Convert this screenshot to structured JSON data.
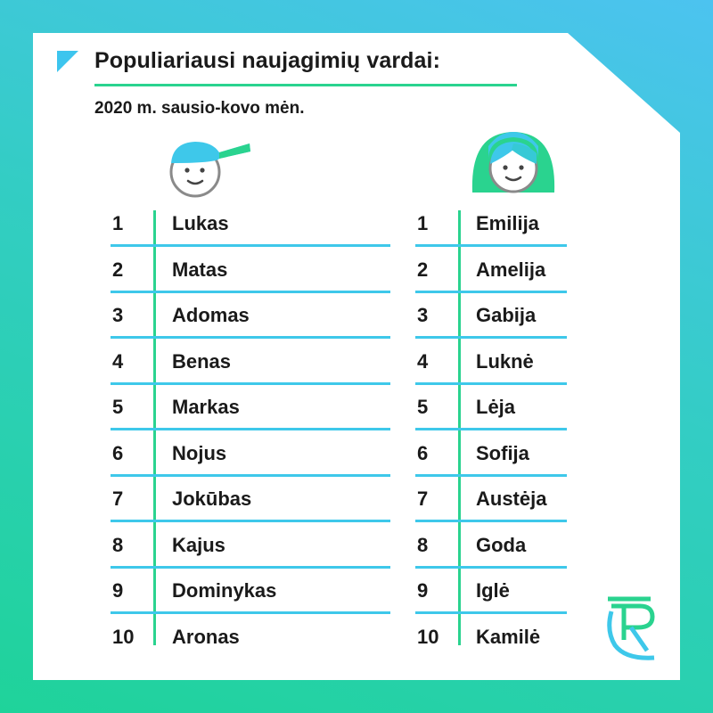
{
  "header": {
    "title": "Populiariausi naujagimių vardai:",
    "subtitle": "2020 m. sausio-kovo mėn."
  },
  "colors": {
    "accent_green": "#2ad38f",
    "accent_blue": "#3ec8ea",
    "text": "#1a1a1a"
  },
  "icons": {
    "boy": "boy-face-icon",
    "girl": "girl-face-icon",
    "logo": "rc-logo-icon"
  },
  "boys": [
    {
      "rank": "1",
      "name": "Lukas"
    },
    {
      "rank": "2",
      "name": "Matas"
    },
    {
      "rank": "3",
      "name": "Adomas"
    },
    {
      "rank": "4",
      "name": "Benas"
    },
    {
      "rank": "5",
      "name": "Markas"
    },
    {
      "rank": "6",
      "name": "Nojus"
    },
    {
      "rank": "7",
      "name": "Jokūbas"
    },
    {
      "rank": "8",
      "name": "Kajus"
    },
    {
      "rank": "9",
      "name": "Dominykas"
    },
    {
      "rank": "10",
      "name": "Aronas"
    }
  ],
  "girls": [
    {
      "rank": "1",
      "name": "Emilija"
    },
    {
      "rank": "2",
      "name": "Amelija"
    },
    {
      "rank": "3",
      "name": "Gabija"
    },
    {
      "rank": "4",
      "name": "Luknė"
    },
    {
      "rank": "5",
      "name": "Lėja"
    },
    {
      "rank": "6",
      "name": "Sofija"
    },
    {
      "rank": "7",
      "name": "Austėja"
    },
    {
      "rank": "8",
      "name": "Goda"
    },
    {
      "rank": "9",
      "name": "Iglė"
    },
    {
      "rank": "10",
      "name": "Kamilė"
    }
  ]
}
